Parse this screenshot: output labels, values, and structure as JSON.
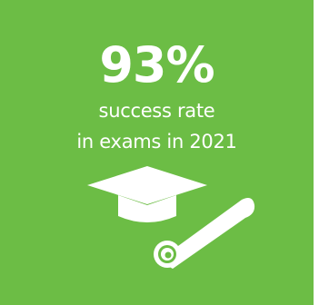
{
  "stat": {
    "value": "93%",
    "line1": "success rate",
    "line2": "in exams in 2021"
  },
  "icons": {
    "cap": "graduation-cap-icon",
    "diploma": "diploma-scroll-icon"
  },
  "colors": {
    "background": "#6cbd45",
    "foreground": "#ffffff"
  }
}
